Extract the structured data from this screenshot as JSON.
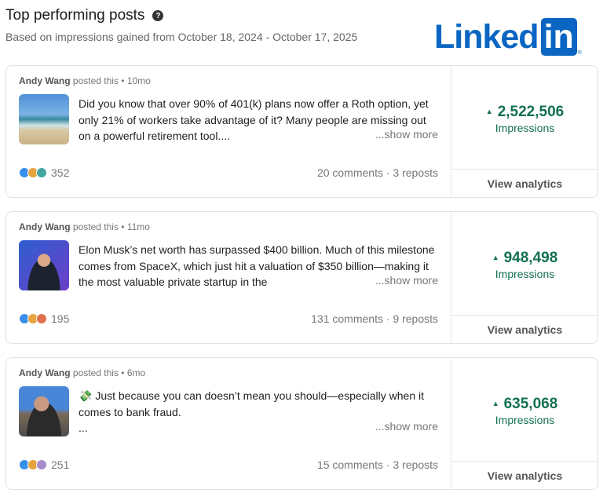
{
  "header": {
    "title": "Top performing posts",
    "help_icon": "question-circle-icon",
    "subtitle": "Based on impressions gained from October 18, 2024 - October 17, 2025"
  },
  "logo": {
    "word": "Linked",
    "box": "in",
    "reg": "®"
  },
  "colors": {
    "accent": "#0a66c2",
    "impressions": "#137052"
  },
  "posts": [
    {
      "author": "Andy Wang",
      "meta": "posted this • 10mo",
      "text": "Did you know that over 90% of 401(k) plans now offer a Roth option, yet only 21% of workers take advantage of it? Many people are missing out on a powerful retirement tool....",
      "show_more": "...show more",
      "reactions": "352",
      "counts": "20 comments · 3 reposts",
      "impressions": "2,522,506",
      "impressions_label": "Impressions",
      "view": "View analytics"
    },
    {
      "author": "Andy Wang",
      "meta": "posted this • 11mo",
      "text": "Elon Musk’s net worth has surpassed $400 billion. Much of this milestone comes from SpaceX, which just hit a valuation of $350 billion—making it the most valuable private startup in the",
      "show_more": "...show more",
      "reactions": "195",
      "counts": "131 comments · 9 reposts",
      "impressions": "948,498",
      "impressions_label": "Impressions",
      "view": "View analytics"
    },
    {
      "author": "Andy Wang",
      "meta": "posted this • 6mo",
      "emoji": "💸",
      "text": "Just because you can doesn’t mean you should—especially when it comes to bank fraud.",
      "ellipsis": "...",
      "show_more": "...show more",
      "reactions": "251",
      "counts": "15 comments · 3 reposts",
      "impressions": "635,068",
      "impressions_label": "Impressions",
      "view": "View analytics"
    }
  ]
}
